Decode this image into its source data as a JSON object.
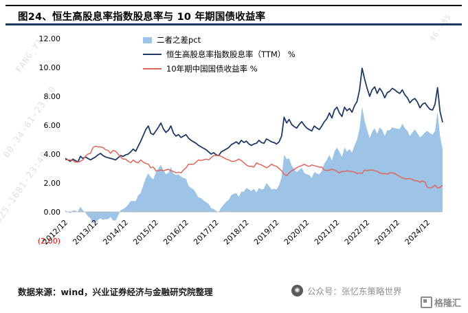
{
  "title": "图24、恒生高股息率指数股息率与 10 年期国债收益率",
  "legend": [
    {
      "label": "二者之差pct",
      "type": "area",
      "color": "#9DC3E6"
    },
    {
      "label": "恒生高股息率指数股息率（TTM） %",
      "type": "line",
      "color": "#1F3864"
    },
    {
      "label": "10年期中国国债收益率  %",
      "type": "line",
      "color": "#E0665C"
    }
  ],
  "footer": {
    "source": "数据来源：wind，兴业证券经济与金融研究院整理",
    "wechat": "公众号：张忆东策略世界",
    "corner_logo": "格隆汇"
  },
  "watermarks": [
    "00-34-61-23:40",
    "025-1681-23:40",
    "FANG_Y11",
    "46--85"
  ],
  "chart_data": {
    "type": "area",
    "subtype": "combo: shaded difference area + two lines",
    "title": "恒生高股息率指数股息率与 10 年期国债收益率",
    "xlabel": "",
    "ylabel": "",
    "ylim": [
      -2,
      12
    ],
    "grid": false,
    "legend_position": "top-center-inside",
    "x_start": "2012/12",
    "x_end": "2025/06",
    "x_frequency": "monthly",
    "x_tick_labels": [
      "2012/12",
      "2013/12",
      "2014/12",
      "2015/12",
      "2016/12",
      "2017/12",
      "2018/12",
      "2019/12",
      "2020/12",
      "2021/12",
      "2022/12",
      "2023/12",
      "2024/12"
    ],
    "x_tick_month_indices": [
      0,
      12,
      24,
      36,
      48,
      60,
      72,
      84,
      96,
      108,
      120,
      132,
      144
    ],
    "y_ticks": [
      {
        "label": "12.00",
        "value": 12,
        "color": "#000000"
      },
      {
        "label": "10.00",
        "value": 10,
        "color": "#000000"
      },
      {
        "label": "8.00",
        "value": 8,
        "color": "#000000"
      },
      {
        "label": "6.00",
        "value": 6,
        "color": "#000000"
      },
      {
        "label": "4.00",
        "value": 4,
        "color": "#000000"
      },
      {
        "label": "2.00",
        "value": 2,
        "color": "#000000"
      },
      {
        "label": "0.00",
        "value": 0,
        "color": "#000000"
      },
      {
        "label": "(2.00)",
        "value": -2,
        "color": "#FF0000"
      }
    ],
    "series": [
      {
        "name": "恒生高股息率指数股息率（TTM） %",
        "type": "line",
        "color": "#1F3864",
        "width": 1.8,
        "values": [
          3.7,
          3.6,
          3.5,
          3.65,
          3.55,
          3.45,
          3.85,
          3.7,
          3.8,
          3.7,
          3.6,
          3.7,
          3.8,
          3.95,
          4.05,
          3.9,
          3.8,
          3.75,
          3.7,
          3.65,
          3.6,
          3.75,
          3.9,
          3.85,
          3.95,
          4.0,
          4.15,
          4.35,
          4.2,
          4.55,
          4.9,
          5.3,
          5.7,
          5.95,
          5.45,
          5.35,
          5.6,
          5.85,
          6.15,
          5.75,
          5.5,
          5.65,
          5.95,
          5.45,
          5.25,
          5.35,
          5.15,
          5.25,
          5.35,
          5.1,
          4.95,
          4.85,
          4.75,
          4.6,
          4.5,
          4.4,
          4.3,
          4.15,
          4.0,
          4.1,
          3.95,
          3.9,
          4.15,
          4.25,
          4.35,
          4.45,
          4.65,
          4.75,
          4.85,
          4.7,
          4.95,
          4.8,
          4.9,
          4.7,
          4.6,
          4.7,
          4.75,
          4.95,
          4.8,
          4.75,
          5.05,
          4.95,
          4.85,
          4.8,
          4.7,
          4.85,
          5.25,
          6.55,
          6.15,
          6.4,
          6.05,
          5.9,
          5.8,
          6.05,
          6.25,
          6.0,
          5.8,
          5.7,
          5.6,
          5.95,
          5.8,
          5.7,
          5.95,
          6.25,
          6.45,
          6.85,
          6.5,
          7.05,
          7.25,
          6.85,
          6.6,
          7.25,
          7.0,
          7.15,
          6.9,
          7.35,
          7.65,
          8.45,
          9.95,
          9.2,
          8.55,
          8.0,
          8.45,
          8.65,
          8.2,
          8.55,
          8.3,
          7.9,
          8.25,
          8.35,
          8.55,
          8.45,
          8.3,
          8.2,
          8.45,
          8.1,
          7.9,
          7.55,
          7.75,
          7.85,
          7.6,
          7.2,
          7.45,
          7.55,
          7.3,
          7.1,
          7.05,
          7.45,
          8.6,
          6.95,
          6.2
        ]
      },
      {
        "name": "10年期中国国债收益率  %",
        "type": "line",
        "color": "#E0665C",
        "width": 1.5,
        "values": [
          3.6,
          3.6,
          3.6,
          3.55,
          3.45,
          3.45,
          3.5,
          3.6,
          3.85,
          4.0,
          4.05,
          4.45,
          4.55,
          4.5,
          4.5,
          4.45,
          4.3,
          4.25,
          4.05,
          4.25,
          4.2,
          4.0,
          3.8,
          3.65,
          3.65,
          3.5,
          3.4,
          3.6,
          3.45,
          3.4,
          3.6,
          3.45,
          3.35,
          3.3,
          3.05,
          3.1,
          2.85,
          2.85,
          2.9,
          2.85,
          2.9,
          2.95,
          2.85,
          2.8,
          2.7,
          2.75,
          2.7,
          2.9,
          3.05,
          3.3,
          3.3,
          3.3,
          3.45,
          3.6,
          3.55,
          3.6,
          3.65,
          3.6,
          3.75,
          3.9,
          3.9,
          3.9,
          3.85,
          3.75,
          3.65,
          3.6,
          3.5,
          3.5,
          3.55,
          3.65,
          3.55,
          3.4,
          3.25,
          3.15,
          3.15,
          3.1,
          3.4,
          3.3,
          3.25,
          3.15,
          3.05,
          3.15,
          3.3,
          3.2,
          3.15,
          3.0,
          2.85,
          2.6,
          2.5,
          2.7,
          2.85,
          2.95,
          3.05,
          3.15,
          3.2,
          3.3,
          3.2,
          3.15,
          3.25,
          3.2,
          3.15,
          3.1,
          3.1,
          2.9,
          2.85,
          2.9,
          2.95,
          2.9,
          2.8,
          2.7,
          2.8,
          2.8,
          2.85,
          2.8,
          2.8,
          2.75,
          2.65,
          2.7,
          2.65,
          2.9,
          2.85,
          2.9,
          2.9,
          2.85,
          2.8,
          2.7,
          2.65,
          2.65,
          2.6,
          2.7,
          2.7,
          2.65,
          2.55,
          2.45,
          2.35,
          2.3,
          2.3,
          2.3,
          2.25,
          2.15,
          2.15,
          2.05,
          2.15,
          2.05,
          1.7,
          1.65,
          1.7,
          1.85,
          1.65,
          1.7,
          1.85
        ]
      },
      {
        "name": "二者之差pct",
        "type": "area",
        "color": "#9DC3E6",
        "derived_from": "series[0].values - series[1].values"
      }
    ]
  }
}
